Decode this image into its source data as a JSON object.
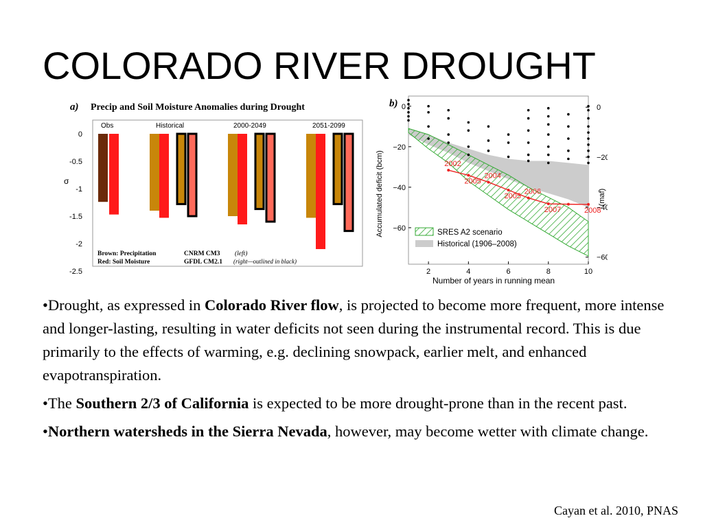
{
  "slide": {
    "title": "COLORADO RIVER DROUGHT",
    "citation": "Cayan et al. 2010, PNAS",
    "bullets": [
      {
        "before": "•Drought, as expressed in ",
        "bold": "Colorado River flow",
        "after": ", is projected to become more frequent, more intense and longer-lasting, resulting in water deficits not seen during the instrumental record. This is due primarily to the effects of warming, e.g. declining snowpack, earlier melt, and enhanced evapotranspiration."
      },
      {
        "before": "•The ",
        "bold": "Southern 2/3 of California",
        "after": " is expected to be more drought-prone than in the recent past."
      },
      {
        "before": "•",
        "bold": "Northern watersheds in the Sierra Nevada",
        "after": ", however, may become wetter with climate change."
      }
    ]
  },
  "colors": {
    "obs_brown": "#6b2a0a",
    "precip_brown": "#c8860a",
    "soil_red": "#ff1a1a",
    "soil_red_light": "#ff6a5a",
    "sres_green": "#33aa33",
    "historical_gray": "#cccccc",
    "deficit_red": "#ee2222"
  },
  "chart_data": [
    {
      "type": "bar",
      "panel_label": "a)",
      "title": "Precip and Soil Moisture Anomalies during Drought",
      "ylabel": "σ",
      "ylim": [
        -2.5,
        0
      ],
      "yticks": [
        "0",
        "-0.5",
        "-1",
        "-1.5",
        "-2",
        "-2.5"
      ],
      "ytick_values": [
        0,
        -0.5,
        -1,
        -1.5,
        -2,
        -2.5
      ],
      "groups": [
        "Obs",
        "Historical",
        "2000-2049",
        "2051-2099"
      ],
      "bars": [
        {
          "group": "Obs",
          "kind": "precip_obs",
          "value": -1.24
        },
        {
          "group": "Obs",
          "kind": "soil_obs",
          "value": -1.47
        },
        {
          "group": "Historical",
          "kind": "precip_cnrm",
          "value": -1.4
        },
        {
          "group": "Historical",
          "kind": "soil_cnrm",
          "value": -1.53
        },
        {
          "group": "Historical",
          "kind": "precip_gfdl",
          "value": -1.28
        },
        {
          "group": "Historical",
          "kind": "soil_gfdl",
          "value": -1.5
        },
        {
          "group": "2000-2049",
          "kind": "precip_cnrm",
          "value": -1.5
        },
        {
          "group": "2000-2049",
          "kind": "soil_cnrm",
          "value": -1.65
        },
        {
          "group": "2000-2049",
          "kind": "precip_gfdl",
          "value": -1.37
        },
        {
          "group": "2000-2049",
          "kind": "soil_gfdl",
          "value": -1.6
        },
        {
          "group": "2051-2099",
          "kind": "precip_cnrm",
          "value": -1.53
        },
        {
          "group": "2051-2099",
          "kind": "soil_cnrm",
          "value": -2.1
        },
        {
          "group": "2051-2099",
          "kind": "precip_gfdl",
          "value": -1.28
        },
        {
          "group": "2051-2099",
          "kind": "soil_gfdl",
          "value": -1.77
        }
      ],
      "legend": {
        "line1_left": "Brown: Precipitation",
        "line2_left": "Red: Soil Moisture",
        "line1_right": "CNRM CM3",
        "line1_right_note": "(left)",
        "line2_right": "GFDL CM2.1",
        "line2_right_note": "(right—outlined in black)"
      }
    },
    {
      "type": "line",
      "panel_label": "b)",
      "xlabel": "Number of years in running mean",
      "ylabel": "Accumulated deficit (bcm)",
      "y2label": "(maf)",
      "xlim": [
        1,
        10
      ],
      "ylim": [
        -78,
        5
      ],
      "xticks": [
        2,
        4,
        6,
        8,
        10
      ],
      "yticks": [
        0,
        -20,
        -40,
        -60
      ],
      "yticks_right": [
        0,
        -20,
        -40,
        -60
      ],
      "historical_series": {
        "name": "Historical (1906–2008)",
        "x": [
          1,
          2,
          3,
          4,
          5,
          6,
          7,
          8,
          9,
          10
        ],
        "values": [
          -26.8,
          -29.2,
          -31.6,
          -34.1,
          -37.5,
          -41.4,
          -45.3,
          -48.2,
          -48.4,
          -48.5
        ],
        "labels": [
          "",
          "",
          "2002",
          "2005",
          "2004",
          "2005",
          "2006",
          "2007",
          "",
          "2008"
        ]
      },
      "band_historical": {
        "x": [
          1,
          2,
          3,
          4,
          5,
          6,
          7,
          8,
          9,
          10
        ],
        "upper": [
          -11,
          -14,
          -18,
          -21,
          -24,
          -26,
          -27,
          -27,
          -28,
          -29
        ],
        "lower": [
          -14,
          -19,
          -23,
          -28,
          -32,
          -36,
          -40,
          -43,
          -46,
          -50
        ]
      },
      "band_sres_a2": {
        "x": [
          1,
          2,
          3,
          4,
          5,
          6,
          7,
          8,
          9,
          10
        ],
        "upper": [
          -11,
          -14,
          -19,
          -24,
          -29,
          -34,
          -40,
          -45,
          -50,
          -57
        ],
        "lower": [
          -13,
          -21,
          -28,
          -37,
          -44,
          -51,
          -57,
          -63,
          -69,
          -74
        ]
      },
      "scatter_points": [
        {
          "x": 1,
          "y": 3
        },
        {
          "x": 1,
          "y": 1
        },
        {
          "x": 1,
          "y": -1
        },
        {
          "x": 1,
          "y": -3
        },
        {
          "x": 1,
          "y": -5
        },
        {
          "x": 1,
          "y": -7
        },
        {
          "x": 2,
          "y": 0
        },
        {
          "x": 2,
          "y": -3
        },
        {
          "x": 2,
          "y": -10
        },
        {
          "x": 2,
          "y": -16
        },
        {
          "x": 3,
          "y": -2
        },
        {
          "x": 3,
          "y": -6
        },
        {
          "x": 3,
          "y": -14
        },
        {
          "x": 3,
          "y": -18
        },
        {
          "x": 4,
          "y": -8
        },
        {
          "x": 4,
          "y": -12
        },
        {
          "x": 4,
          "y": -20
        },
        {
          "x": 4,
          "y": -24
        },
        {
          "x": 5,
          "y": -10
        },
        {
          "x": 5,
          "y": -17
        },
        {
          "x": 5,
          "y": -22
        },
        {
          "x": 6,
          "y": -14
        },
        {
          "x": 6,
          "y": -18
        },
        {
          "x": 6,
          "y": -25
        },
        {
          "x": 7,
          "y": -2
        },
        {
          "x": 7,
          "y": -6
        },
        {
          "x": 7,
          "y": -12
        },
        {
          "x": 7,
          "y": -18
        },
        {
          "x": 7,
          "y": -24
        },
        {
          "x": 7,
          "y": -27
        },
        {
          "x": 8,
          "y": -1
        },
        {
          "x": 8,
          "y": -5
        },
        {
          "x": 8,
          "y": -9
        },
        {
          "x": 8,
          "y": -14
        },
        {
          "x": 8,
          "y": -20
        },
        {
          "x": 8,
          "y": -24
        },
        {
          "x": 8,
          "y": -28
        },
        {
          "x": 9,
          "y": 12
        },
        {
          "x": 9,
          "y": -4
        },
        {
          "x": 9,
          "y": -10
        },
        {
          "x": 9,
          "y": -16
        },
        {
          "x": 9,
          "y": -22
        },
        {
          "x": 9,
          "y": -26
        },
        {
          "x": 10,
          "y": 0
        },
        {
          "x": 10,
          "y": -2
        },
        {
          "x": 10,
          "y": -6
        },
        {
          "x": 10,
          "y": -10
        },
        {
          "x": 10,
          "y": -13
        },
        {
          "x": 10,
          "y": -16
        },
        {
          "x": 10,
          "y": -19
        },
        {
          "x": 10,
          "y": -22
        },
        {
          "x": 10,
          "y": -25
        },
        {
          "x": 10,
          "y": -28
        }
      ],
      "legend": [
        {
          "name": "SRES A2 scenario",
          "kind": "hatch"
        },
        {
          "name": "Historical (1906–2008)",
          "kind": "gray"
        }
      ]
    }
  ]
}
